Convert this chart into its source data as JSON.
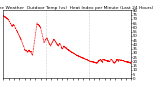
{
  "title": "Milwaukee Weather  Outdoor Temp (vs)  Heat Index per Minute (Last 24 Hours)",
  "ylim": [
    0,
    80
  ],
  "xlim": [
    0,
    1440
  ],
  "line_color": "#ff0000",
  "bg_color": "#ffffff",
  "title_fontsize": 3.2,
  "tick_fontsize": 2.8,
  "vline_positions": [
    480,
    960
  ],
  "x_tick_count": 25,
  "ytick_step": 5
}
